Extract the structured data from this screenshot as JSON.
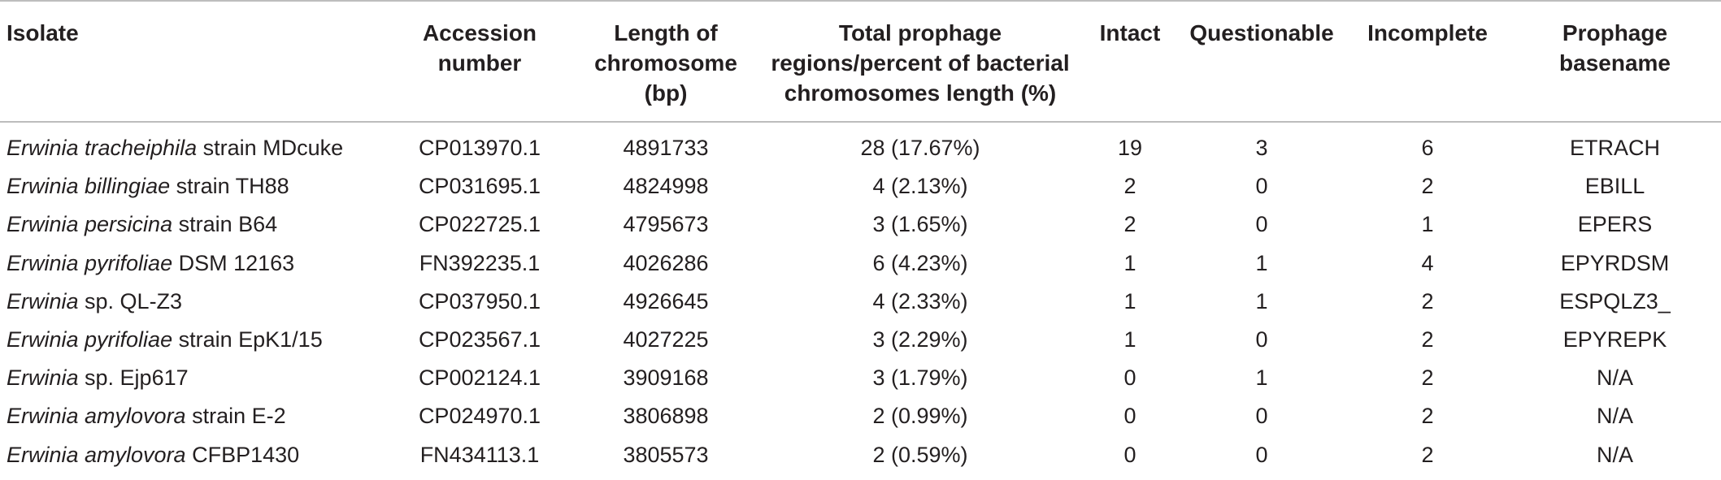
{
  "table": {
    "headers": {
      "isolate": "Isolate",
      "accession": [
        "Accession",
        "number"
      ],
      "length": [
        "Length of",
        "chromosome",
        "(bp)"
      ],
      "total": [
        "Total prophage",
        "regions/percent of bacterial",
        "chromosomes length (%)"
      ],
      "intact": "Intact",
      "questionable": "Questionable",
      "incomplete": "Incomplete",
      "basename": [
        "Prophage",
        "basename"
      ]
    },
    "rows": [
      {
        "genus_species": "Erwinia tracheiphila",
        "strain": " strain MDcuke",
        "accession": "CP013970.1",
        "length": "4891733",
        "total": "28 (17.67%)",
        "intact": "19",
        "questionable": "3",
        "incomplete": "6",
        "basename": "ETRACH"
      },
      {
        "genus_species": "Erwinia billingiae",
        "strain": " strain TH88",
        "accession": "CP031695.1",
        "length": "4824998",
        "total": "4 (2.13%)",
        "intact": "2",
        "questionable": "0",
        "incomplete": "2",
        "basename": "EBILL"
      },
      {
        "genus_species": "Erwinia persicina",
        "strain": " strain B64",
        "accession": "CP022725.1",
        "length": "4795673",
        "total": "3 (1.65%)",
        "intact": "2",
        "questionable": "0",
        "incomplete": "1",
        "basename": "EPERS"
      },
      {
        "genus_species": "Erwinia pyrifoliae",
        "strain": " DSM 12163",
        "accession": "FN392235.1",
        "length": "4026286",
        "total": "6 (4.23%)",
        "intact": "1",
        "questionable": "1",
        "incomplete": "4",
        "basename": "EPYRDSM"
      },
      {
        "genus_species": "Erwinia",
        "strain": " sp. QL-Z3",
        "accession": "CP037950.1",
        "length": "4926645",
        "total": "4 (2.33%)",
        "intact": "1",
        "questionable": "1",
        "incomplete": "2",
        "basename": "ESPQLZ3_"
      },
      {
        "genus_species": "Erwinia pyrifoliae",
        "strain": " strain EpK1/15",
        "accession": "CP023567.1",
        "length": "4027225",
        "total": "3 (2.29%)",
        "intact": "1",
        "questionable": "0",
        "incomplete": "2",
        "basename": "EPYREPK"
      },
      {
        "genus_species": "Erwinia",
        "strain": " sp. Ejp617",
        "accession": "CP002124.1",
        "length": "3909168",
        "total": "3 (1.79%)",
        "intact": "0",
        "questionable": "1",
        "incomplete": "2",
        "basename": "N/A"
      },
      {
        "genus_species": "Erwinia amylovora",
        "strain": " strain E-2",
        "accession": "CP024970.1",
        "length": "3806898",
        "total": "2 (0.99%)",
        "intact": "0",
        "questionable": "0",
        "incomplete": "2",
        "basename": "N/A"
      },
      {
        "genus_species": "Erwinia amylovora",
        "strain": " CFBP1430",
        "accession": "FN434113.1",
        "length": "3805573",
        "total": "2 (0.59%)",
        "intact": "0",
        "questionable": "0",
        "incomplete": "2",
        "basename": "N/A"
      }
    ]
  }
}
